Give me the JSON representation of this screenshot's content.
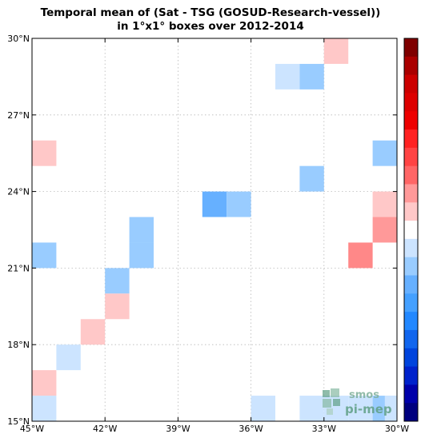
{
  "chart_data": {
    "type": "heatmap",
    "title_line1": "Temporal mean of (Sat - TSG (GOSUD-Research-vessel))",
    "title_line2": "in 1°x1° boxes over 2012-2014",
    "x_range": [
      -45,
      -30
    ],
    "y_range": [
      15,
      30
    ],
    "x_ticks": [
      {
        "value": -45,
        "label": "45°W"
      },
      {
        "value": -42,
        "label": "42°W"
      },
      {
        "value": -39,
        "label": "39°W"
      },
      {
        "value": -36,
        "label": "36°W"
      },
      {
        "value": -33,
        "label": "33°W"
      },
      {
        "value": -30,
        "label": "30°W"
      }
    ],
    "y_ticks": [
      {
        "value": 15,
        "label": "15°N"
      },
      {
        "value": 18,
        "label": "18°N"
      },
      {
        "value": 21,
        "label": "21°N"
      },
      {
        "value": 24,
        "label": "24°N"
      },
      {
        "value": 27,
        "label": "27°N"
      },
      {
        "value": 30,
        "label": "30°N"
      }
    ],
    "grid": true,
    "colorbar_colors": [
      "#00007f",
      "#0000aa",
      "#0022cc",
      "#0044dd",
      "#1166ee",
      "#2288ff",
      "#44a0ff",
      "#66b0ff",
      "#99ccff",
      "#cce4ff",
      "#ffffff",
      "#ffc8c8",
      "#ff9999",
      "#ff6666",
      "#ff4444",
      "#ff2222",
      "#ee0000",
      "#dd0000",
      "#cc0000",
      "#aa0000",
      "#7f0000"
    ],
    "cells": [
      {
        "lon": -33,
        "lat": 29,
        "color": "#ffc8c8"
      },
      {
        "lon": -35,
        "lat": 28,
        "color": "#cce4ff"
      },
      {
        "lon": -34,
        "lat": 28,
        "color": "#99ccff"
      },
      {
        "lon": -45,
        "lat": 25,
        "color": "#ffc8c8"
      },
      {
        "lon": -31,
        "lat": 25,
        "color": "#99ccff"
      },
      {
        "lon": -34,
        "lat": 24,
        "color": "#99ccff"
      },
      {
        "lon": -38,
        "lat": 23,
        "color": "#66b0ff"
      },
      {
        "lon": -37,
        "lat": 23,
        "color": "#99ccff"
      },
      {
        "lon": -31,
        "lat": 23,
        "color": "#ffc8c8"
      },
      {
        "lon": -41,
        "lat": 22,
        "color": "#99ccff"
      },
      {
        "lon": -31,
        "lat": 22,
        "color": "#ff9999"
      },
      {
        "lon": -45,
        "lat": 21,
        "color": "#99ccff"
      },
      {
        "lon": -41,
        "lat": 21,
        "color": "#99ccff"
      },
      {
        "lon": -32,
        "lat": 21,
        "color": "#ff8888"
      },
      {
        "lon": -42,
        "lat": 20,
        "color": "#99ccff"
      },
      {
        "lon": -42,
        "lat": 19,
        "color": "#ffc8c8"
      },
      {
        "lon": -43,
        "lat": 18,
        "color": "#ffc8c8"
      },
      {
        "lon": -44,
        "lat": 17,
        "color": "#cce4ff"
      },
      {
        "lon": -45,
        "lat": 16,
        "color": "#ffc8c8"
      },
      {
        "lon": -45,
        "lat": 15,
        "color": "#cce4ff"
      },
      {
        "lon": -36,
        "lat": 15,
        "color": "#cce4ff"
      },
      {
        "lon": -34,
        "lat": 15,
        "color": "#cce4ff"
      },
      {
        "lon": -33,
        "lat": 15,
        "color": "#cce4ff"
      },
      {
        "lon": -32,
        "lat": 15,
        "color": "#cce4ff"
      },
      {
        "lon": -31,
        "lat": 15,
        "color": "#99ccff"
      },
      {
        "lon": -30.5,
        "lat": 15,
        "color": "#cce4ff"
      }
    ]
  },
  "watermark": {
    "line1": "smos",
    "line2": "pi-mep",
    "icon": "smos-pimep-logo-icon"
  }
}
